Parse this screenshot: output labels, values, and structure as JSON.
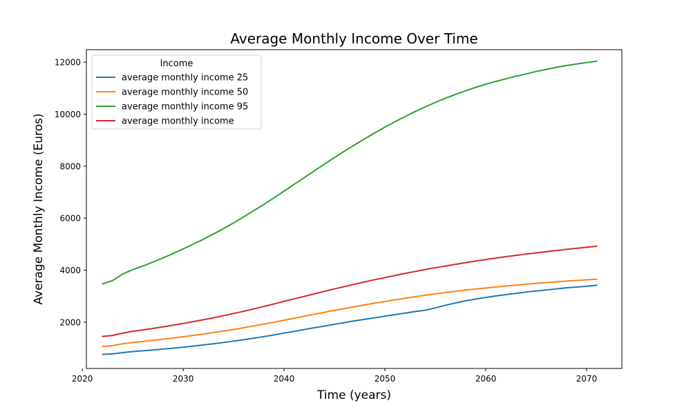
{
  "chart_data": {
    "type": "line",
    "title": "Average Monthly Income Over Time",
    "xlabel": "Time (years)",
    "ylabel": "Average Monthly Income (Euros)",
    "xlim": [
      2020.4,
      2073.5
    ],
    "ylim": [
      220,
      12480
    ],
    "xticks": [
      2020,
      2030,
      2040,
      2050,
      2060,
      2070
    ],
    "yticks": [
      2000,
      4000,
      6000,
      8000,
      10000,
      12000
    ],
    "grid": false,
    "legend": {
      "title": "Income",
      "placement": "top-left"
    },
    "x": [
      2022,
      2023,
      2024,
      2025,
      2026,
      2027,
      2028,
      2029,
      2030,
      2031,
      2032,
      2033,
      2034,
      2035,
      2036,
      2037,
      2038,
      2039,
      2040,
      2041,
      2042,
      2043,
      2044,
      2045,
      2046,
      2047,
      2048,
      2049,
      2050,
      2051,
      2052,
      2053,
      2054,
      2055,
      2056,
      2057,
      2058,
      2059,
      2060,
      2061,
      2062,
      2063,
      2064,
      2065,
      2066,
      2067,
      2068,
      2069,
      2070,
      2071
    ],
    "series": [
      {
        "name": "average monthly income 25",
        "color": "#1f77b4",
        "values": [
          760,
          780,
          830,
          870,
          900,
          930,
          965,
          1000,
          1040,
          1080,
          1125,
          1170,
          1220,
          1270,
          1325,
          1385,
          1445,
          1510,
          1580,
          1645,
          1715,
          1785,
          1850,
          1920,
          1985,
          2050,
          2110,
          2170,
          2230,
          2290,
          2350,
          2410,
          2460,
          2550,
          2650,
          2740,
          2820,
          2890,
          2950,
          3010,
          3060,
          3110,
          3160,
          3200,
          3240,
          3280,
          3320,
          3350,
          3380,
          3420
        ]
      },
      {
        "name": "average monthly income 50",
        "color": "#ff7f0e",
        "values": [
          1070,
          1100,
          1170,
          1220,
          1260,
          1300,
          1345,
          1390,
          1440,
          1490,
          1545,
          1600,
          1660,
          1720,
          1785,
          1855,
          1925,
          2000,
          2075,
          2150,
          2230,
          2305,
          2380,
          2455,
          2525,
          2595,
          2665,
          2730,
          2795,
          2860,
          2920,
          2980,
          3035,
          3090,
          3140,
          3190,
          3235,
          3275,
          3315,
          3355,
          3390,
          3425,
          3460,
          3490,
          3520,
          3550,
          3580,
          3605,
          3630,
          3650
        ]
      },
      {
        "name": "average monthly income 95",
        "color": "#2ca02c",
        "values": [
          3470,
          3600,
          3850,
          4020,
          4160,
          4310,
          4470,
          4640,
          4820,
          5000,
          5190,
          5390,
          5600,
          5820,
          6050,
          6290,
          6530,
          6780,
          7040,
          7300,
          7560,
          7820,
          8080,
          8330,
          8580,
          8820,
          9050,
          9280,
          9500,
          9710,
          9910,
          10100,
          10280,
          10450,
          10610,
          10760,
          10900,
          11030,
          11150,
          11260,
          11360,
          11460,
          11550,
          11640,
          11720,
          11800,
          11870,
          11930,
          11985,
          12040
        ]
      },
      {
        "name": "average monthly income",
        "color": "#d62728",
        "values": [
          1450,
          1490,
          1580,
          1650,
          1700,
          1760,
          1820,
          1885,
          1950,
          2020,
          2095,
          2170,
          2250,
          2335,
          2420,
          2510,
          2605,
          2700,
          2800,
          2895,
          2990,
          3090,
          3185,
          3280,
          3370,
          3460,
          3550,
          3635,
          3715,
          3795,
          3875,
          3950,
          4025,
          4095,
          4160,
          4225,
          4290,
          4350,
          4410,
          4465,
          4520,
          4570,
          4620,
          4665,
          4710,
          4755,
          4800,
          4840,
          4880,
          4920
        ]
      }
    ]
  }
}
